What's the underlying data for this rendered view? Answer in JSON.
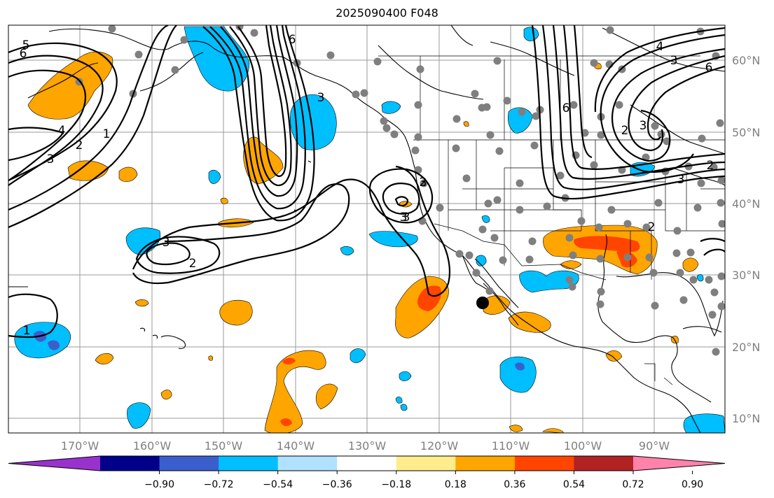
{
  "title": "2025090400 F048",
  "map": {
    "lon_labels": [
      "170°W",
      "160°W",
      "150°W",
      "140°W",
      "130°W",
      "120°W",
      "110°W",
      "100°W",
      "90°W"
    ],
    "lat_labels": [
      "60°N",
      "50°N",
      "40°N",
      "30°N",
      "20°N",
      "10°N"
    ],
    "contour_labels": [
      "5",
      "6",
      "4",
      "3",
      "2",
      "1",
      "6",
      "3",
      "3",
      "2",
      "2",
      "3",
      "3",
      "3",
      "1",
      "4",
      "3",
      "6",
      "6",
      "2",
      "3",
      "3",
      "2",
      "2"
    ]
  },
  "colorbar": {
    "colors": [
      "#9932cc",
      "#00008b",
      "#3a5fcd",
      "#00bfff",
      "#b0e2ff",
      "#ffffff",
      "#ffec8b",
      "#ffa500",
      "#ff4500",
      "#b22222",
      "#ff82ab"
    ],
    "tick_labels": [
      "−0.90",
      "−0.72",
      "−0.54",
      "−0.36",
      "−0.18",
      "0.18",
      "0.36",
      "0.54",
      "0.72",
      "0.90"
    ]
  }
}
